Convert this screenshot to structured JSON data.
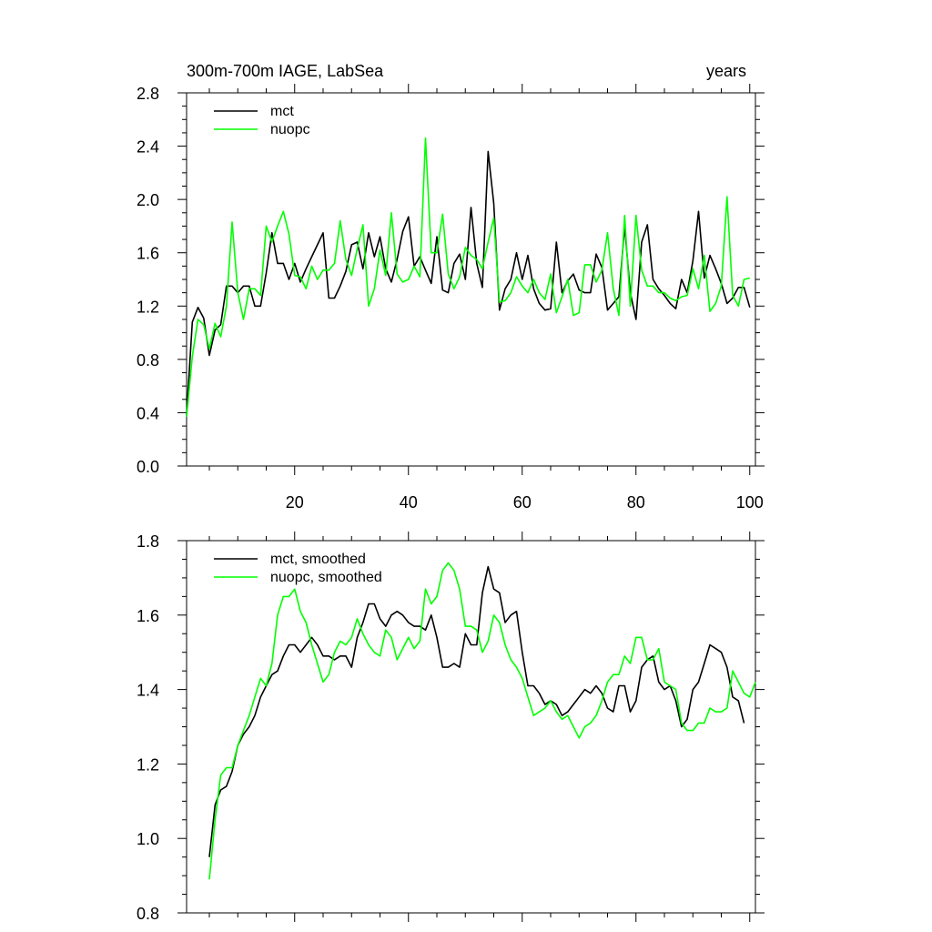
{
  "chart_data": [
    {
      "type": "line",
      "title": "300m-700m IAGE, LabSea",
      "right_title": "years",
      "xlabel": "",
      "ylabel": "",
      "xlim": [
        1,
        101
      ],
      "ylim": [
        0.0,
        2.8
      ],
      "x_ticks": [
        "20",
        "40",
        "60",
        "80",
        "100"
      ],
      "y_ticks": [
        "0.0",
        "0.4",
        "0.8",
        "1.2",
        "1.6",
        "2.0",
        "2.4",
        "2.8"
      ],
      "legend_position": "top-left",
      "x_start": 1,
      "series": [
        {
          "name": "mct",
          "color": "#000000",
          "values": [
            0.38,
            1.08,
            1.19,
            1.11,
            0.83,
            1.02,
            1.06,
            1.35,
            1.35,
            1.3,
            1.35,
            1.35,
            1.2,
            1.2,
            1.45,
            1.75,
            1.52,
            1.52,
            1.4,
            1.52,
            1.38,
            1.48,
            1.57,
            1.66,
            1.75,
            1.26,
            1.26,
            1.35,
            1.46,
            1.66,
            1.68,
            1.48,
            1.75,
            1.57,
            1.72,
            1.48,
            1.38,
            1.55,
            1.76,
            1.87,
            1.5,
            1.57,
            1.47,
            1.37,
            1.72,
            1.32,
            1.3,
            1.52,
            1.59,
            1.4,
            1.94,
            1.52,
            1.34,
            2.36,
            1.97,
            1.17,
            1.33,
            1.4,
            1.6,
            1.4,
            1.58,
            1.33,
            1.22,
            1.17,
            1.18,
            1.68,
            1.3,
            1.39,
            1.44,
            1.32,
            1.3,
            1.3,
            1.59,
            1.49,
            1.17,
            1.22,
            1.27,
            1.8,
            1.3,
            1.1,
            1.68,
            1.81,
            1.4,
            1.33,
            1.28,
            1.22,
            1.18,
            1.4,
            1.3,
            1.54,
            1.91,
            1.41,
            1.58,
            1.48,
            1.37,
            1.22,
            1.26,
            1.34,
            1.34,
            1.19
          ]
        },
        {
          "name": "nuopc",
          "color": "#00ff00",
          "values": [
            0.37,
            0.82,
            1.1,
            1.06,
            0.88,
            1.07,
            0.97,
            1.2,
            1.83,
            1.3,
            1.1,
            1.33,
            1.33,
            1.28,
            1.8,
            1.68,
            1.8,
            1.91,
            1.74,
            1.43,
            1.42,
            1.33,
            1.5,
            1.4,
            1.47,
            1.47,
            1.52,
            1.84,
            1.55,
            1.43,
            1.63,
            1.81,
            1.2,
            1.33,
            1.62,
            1.43,
            1.9,
            1.44,
            1.38,
            1.4,
            1.5,
            1.42,
            2.46,
            1.6,
            1.6,
            1.89,
            1.44,
            1.33,
            1.42,
            1.64,
            1.58,
            1.55,
            1.48,
            1.68,
            1.86,
            1.23,
            1.24,
            1.3,
            1.42,
            1.35,
            1.3,
            1.4,
            1.3,
            1.25,
            1.44,
            1.15,
            1.27,
            1.4,
            1.13,
            1.15,
            1.51,
            1.51,
            1.38,
            1.47,
            1.75,
            1.33,
            1.13,
            1.88,
            1.2,
            1.88,
            1.47,
            1.35,
            1.35,
            1.3,
            1.3,
            1.26,
            1.24,
            1.27,
            1.28,
            1.48,
            1.33,
            1.58,
            1.16,
            1.22,
            1.35,
            2.02,
            1.28,
            1.2,
            1.4,
            1.41
          ]
        }
      ]
    },
    {
      "type": "line",
      "title": "",
      "xlabel": "",
      "ylabel": "",
      "xlim": [
        1,
        101
      ],
      "ylim": [
        0.8,
        1.8
      ],
      "y_ticks": [
        "0.8",
        "1.0",
        "1.2",
        "1.4",
        "1.6",
        "1.8"
      ],
      "legend_position": "top-left",
      "x_start": 5,
      "series": [
        {
          "name": "mct, smoothed",
          "color": "#000000",
          "values": [
            0.95,
            1.09,
            1.13,
            1.14,
            1.18,
            1.25,
            1.28,
            1.3,
            1.33,
            1.38,
            1.41,
            1.44,
            1.45,
            1.49,
            1.52,
            1.52,
            1.5,
            1.52,
            1.54,
            1.52,
            1.49,
            1.49,
            1.48,
            1.49,
            1.49,
            1.46,
            1.54,
            1.58,
            1.63,
            1.63,
            1.59,
            1.57,
            1.6,
            1.61,
            1.6,
            1.58,
            1.57,
            1.57,
            1.56,
            1.6,
            1.54,
            1.46,
            1.46,
            1.47,
            1.46,
            1.55,
            1.52,
            1.52,
            1.66,
            1.73,
            1.67,
            1.66,
            1.58,
            1.6,
            1.61,
            1.5,
            1.41,
            1.41,
            1.39,
            1.36,
            1.37,
            1.36,
            1.33,
            1.34,
            1.36,
            1.38,
            1.4,
            1.39,
            1.41,
            1.39,
            1.35,
            1.34,
            1.41,
            1.41,
            1.34,
            1.37,
            1.46,
            1.48,
            1.49,
            1.42,
            1.4,
            1.41,
            1.37,
            1.3,
            1.32,
            1.4,
            1.42,
            1.47,
            1.52,
            1.51,
            1.5,
            1.46,
            1.38,
            1.37,
            1.31
          ]
        },
        {
          "name": "nuopc, smoothed",
          "color": "#00ff00",
          "values": [
            0.89,
            1.05,
            1.17,
            1.19,
            1.19,
            1.25,
            1.29,
            1.33,
            1.38,
            1.43,
            1.41,
            1.47,
            1.6,
            1.65,
            1.65,
            1.67,
            1.61,
            1.58,
            1.52,
            1.47,
            1.42,
            1.44,
            1.5,
            1.53,
            1.52,
            1.54,
            1.59,
            1.55,
            1.52,
            1.5,
            1.49,
            1.56,
            1.54,
            1.48,
            1.51,
            1.54,
            1.51,
            1.53,
            1.67,
            1.63,
            1.65,
            1.72,
            1.74,
            1.72,
            1.67,
            1.57,
            1.57,
            1.56,
            1.5,
            1.53,
            1.6,
            1.58,
            1.52,
            1.48,
            1.46,
            1.43,
            1.38,
            1.33,
            1.34,
            1.35,
            1.37,
            1.34,
            1.32,
            1.33,
            1.3,
            1.27,
            1.3,
            1.31,
            1.33,
            1.37,
            1.42,
            1.44,
            1.44,
            1.49,
            1.47,
            1.54,
            1.54,
            1.48,
            1.48,
            1.51,
            1.42,
            1.41,
            1.4,
            1.31,
            1.29,
            1.29,
            1.31,
            1.31,
            1.35,
            1.34,
            1.34,
            1.35,
            1.45,
            1.42,
            1.39,
            1.38,
            1.42
          ]
        }
      ]
    }
  ]
}
